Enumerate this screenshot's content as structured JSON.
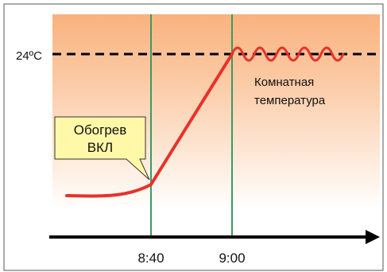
{
  "diagram": {
    "y_label": "24ºC",
    "callout": {
      "line1": "Обогрев",
      "line2": "ВКЛ",
      "fill": "#fff8a8"
    },
    "room_label": {
      "line1": "Комнатная",
      "line2": "температура"
    },
    "x_ticks": [
      "8:40",
      "9:00"
    ],
    "colors": {
      "band_top": "#f9b27e",
      "band_bottom": "#fffdfb",
      "curve": "#e8322a",
      "marker_lines": "#3a9a62",
      "axis": "#000000"
    }
  }
}
